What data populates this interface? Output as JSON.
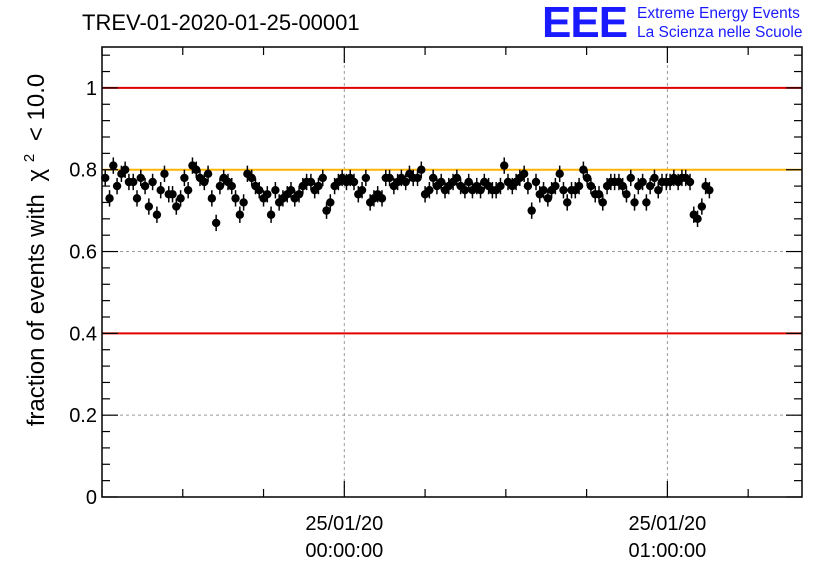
{
  "title": "TREV-01-2020-01-25-00001",
  "logo": {
    "letters": "EEE",
    "line1": "Extreme Energy Events",
    "line2": "La Scienza nelle Scuole"
  },
  "colors": {
    "logo": "#1a1aff",
    "limit_lines": "#e00000",
    "reference_line": "#ffb400",
    "points": "#000000"
  },
  "chart_data": {
    "type": "scatter",
    "ylabel_prefix": "fraction of events with",
    "ylabel_symbol": "χ",
    "ylabel_exp": "2",
    "ylabel_suffix": "< 10.0",
    "xlabel": "",
    "ylim": [
      0,
      1.1
    ],
    "xlim_minutes": [
      -45,
      85
    ],
    "yticks": [
      "0",
      "0.2",
      "0.4",
      "0.6",
      "0.8",
      "1"
    ],
    "ytick_values": [
      0,
      0.2,
      0.4,
      0.6,
      0.8,
      1.0
    ],
    "xticks": [
      {
        "minutes": 0,
        "date": "25/01/20",
        "time": "00:00:00"
      },
      {
        "minutes": 60,
        "date": "25/01/20",
        "time": "01:00:00"
      }
    ],
    "grid": true,
    "hlines": [
      {
        "y": 1.0,
        "color": "#e00000"
      },
      {
        "y": 0.8,
        "color": "#ffb400"
      },
      {
        "y": 0.4,
        "color": "#e00000"
      }
    ],
    "error_bar": 0.02,
    "points": [
      {
        "t": -44.4,
        "y": 0.78
      },
      {
        "t": -43.6,
        "y": 0.73
      },
      {
        "t": -42.9,
        "y": 0.81
      },
      {
        "t": -42.2,
        "y": 0.76
      },
      {
        "t": -41.4,
        "y": 0.79
      },
      {
        "t": -40.7,
        "y": 0.8
      },
      {
        "t": -40.0,
        "y": 0.77
      },
      {
        "t": -39.2,
        "y": 0.77
      },
      {
        "t": -38.5,
        "y": 0.73
      },
      {
        "t": -37.8,
        "y": 0.78
      },
      {
        "t": -37.0,
        "y": 0.76
      },
      {
        "t": -36.3,
        "y": 0.71
      },
      {
        "t": -35.6,
        "y": 0.77
      },
      {
        "t": -34.8,
        "y": 0.69
      },
      {
        "t": -34.1,
        "y": 0.75
      },
      {
        "t": -33.4,
        "y": 0.79
      },
      {
        "t": -32.6,
        "y": 0.74
      },
      {
        "t": -31.9,
        "y": 0.74
      },
      {
        "t": -31.2,
        "y": 0.71
      },
      {
        "t": -30.4,
        "y": 0.73
      },
      {
        "t": -29.7,
        "y": 0.78
      },
      {
        "t": -29.0,
        "y": 0.75
      },
      {
        "t": -28.2,
        "y": 0.81
      },
      {
        "t": -27.5,
        "y": 0.8
      },
      {
        "t": -26.8,
        "y": 0.78
      },
      {
        "t": -26.0,
        "y": 0.77
      },
      {
        "t": -25.3,
        "y": 0.79
      },
      {
        "t": -24.6,
        "y": 0.73
      },
      {
        "t": -23.8,
        "y": 0.67
      },
      {
        "t": -23.1,
        "y": 0.76
      },
      {
        "t": -22.4,
        "y": 0.78
      },
      {
        "t": -21.6,
        "y": 0.77
      },
      {
        "t": -20.9,
        "y": 0.76
      },
      {
        "t": -20.2,
        "y": 0.73
      },
      {
        "t": -19.4,
        "y": 0.69
      },
      {
        "t": -18.7,
        "y": 0.72
      },
      {
        "t": -18.0,
        "y": 0.79
      },
      {
        "t": -17.2,
        "y": 0.78
      },
      {
        "t": -16.5,
        "y": 0.76
      },
      {
        "t": -15.8,
        "y": 0.75
      },
      {
        "t": -15.0,
        "y": 0.73
      },
      {
        "t": -14.3,
        "y": 0.74
      },
      {
        "t": -13.6,
        "y": 0.69
      },
      {
        "t": -12.8,
        "y": 0.75
      },
      {
        "t": -12.1,
        "y": 0.72
      },
      {
        "t": -11.4,
        "y": 0.73
      },
      {
        "t": -10.6,
        "y": 0.74
      },
      {
        "t": -9.9,
        "y": 0.75
      },
      {
        "t": -9.2,
        "y": 0.73
      },
      {
        "t": -8.4,
        "y": 0.74
      },
      {
        "t": -7.7,
        "y": 0.76
      },
      {
        "t": -7.0,
        "y": 0.77
      },
      {
        "t": -6.2,
        "y": 0.77
      },
      {
        "t": -5.5,
        "y": 0.75
      },
      {
        "t": -4.8,
        "y": 0.76
      },
      {
        "t": -4.0,
        "y": 0.78
      },
      {
        "t": -3.3,
        "y": 0.7
      },
      {
        "t": -2.6,
        "y": 0.72
      },
      {
        "t": -1.8,
        "y": 0.76
      },
      {
        "t": -1.1,
        "y": 0.77
      },
      {
        "t": -0.4,
        "y": 0.78
      },
      {
        "t": 0.4,
        "y": 0.77
      },
      {
        "t": 1.1,
        "y": 0.78
      },
      {
        "t": 1.8,
        "y": 0.77
      },
      {
        "t": 2.6,
        "y": 0.74
      },
      {
        "t": 3.3,
        "y": 0.75
      },
      {
        "t": 4.0,
        "y": 0.78
      },
      {
        "t": 4.8,
        "y": 0.72
      },
      {
        "t": 5.5,
        "y": 0.73
      },
      {
        "t": 6.2,
        "y": 0.74
      },
      {
        "t": 7.0,
        "y": 0.73
      },
      {
        "t": 7.7,
        "y": 0.78
      },
      {
        "t": 8.4,
        "y": 0.78
      },
      {
        "t": 9.2,
        "y": 0.76
      },
      {
        "t": 9.9,
        "y": 0.77
      },
      {
        "t": 10.6,
        "y": 0.78
      },
      {
        "t": 11.4,
        "y": 0.77
      },
      {
        "t": 12.1,
        "y": 0.79
      },
      {
        "t": 12.8,
        "y": 0.78
      },
      {
        "t": 13.6,
        "y": 0.78
      },
      {
        "t": 14.3,
        "y": 0.8
      },
      {
        "t": 15.0,
        "y": 0.74
      },
      {
        "t": 15.8,
        "y": 0.75
      },
      {
        "t": 16.5,
        "y": 0.78
      },
      {
        "t": 17.2,
        "y": 0.76
      },
      {
        "t": 18.0,
        "y": 0.77
      },
      {
        "t": 18.7,
        "y": 0.75
      },
      {
        "t": 19.4,
        "y": 0.76
      },
      {
        "t": 20.2,
        "y": 0.77
      },
      {
        "t": 20.9,
        "y": 0.78
      },
      {
        "t": 21.6,
        "y": 0.76
      },
      {
        "t": 22.4,
        "y": 0.75
      },
      {
        "t": 23.1,
        "y": 0.77
      },
      {
        "t": 23.8,
        "y": 0.75
      },
      {
        "t": 24.6,
        "y": 0.76
      },
      {
        "t": 25.3,
        "y": 0.75
      },
      {
        "t": 26.0,
        "y": 0.77
      },
      {
        "t": 26.8,
        "y": 0.76
      },
      {
        "t": 27.5,
        "y": 0.75
      },
      {
        "t": 28.2,
        "y": 0.75
      },
      {
        "t": 29.0,
        "y": 0.76
      },
      {
        "t": 29.7,
        "y": 0.81
      },
      {
        "t": 30.4,
        "y": 0.77
      },
      {
        "t": 31.2,
        "y": 0.76
      },
      {
        "t": 31.9,
        "y": 0.77
      },
      {
        "t": 32.6,
        "y": 0.78
      },
      {
        "t": 33.4,
        "y": 0.79
      },
      {
        "t": 34.1,
        "y": 0.76
      },
      {
        "t": 34.8,
        "y": 0.7
      },
      {
        "t": 35.6,
        "y": 0.77
      },
      {
        "t": 36.3,
        "y": 0.74
      },
      {
        "t": 37.0,
        "y": 0.75
      },
      {
        "t": 37.8,
        "y": 0.73
      },
      {
        "t": 38.5,
        "y": 0.75
      },
      {
        "t": 39.2,
        "y": 0.76
      },
      {
        "t": 40.0,
        "y": 0.79
      },
      {
        "t": 40.7,
        "y": 0.75
      },
      {
        "t": 41.4,
        "y": 0.72
      },
      {
        "t": 42.2,
        "y": 0.75
      },
      {
        "t": 42.9,
        "y": 0.75
      },
      {
        "t": 43.6,
        "y": 0.76
      },
      {
        "t": 44.4,
        "y": 0.8
      },
      {
        "t": 45.1,
        "y": 0.78
      },
      {
        "t": 45.8,
        "y": 0.76
      },
      {
        "t": 46.6,
        "y": 0.74
      },
      {
        "t": 47.3,
        "y": 0.74
      },
      {
        "t": 48.0,
        "y": 0.72
      },
      {
        "t": 48.8,
        "y": 0.76
      },
      {
        "t": 49.5,
        "y": 0.77
      },
      {
        "t": 50.2,
        "y": 0.77
      },
      {
        "t": 51.0,
        "y": 0.77
      },
      {
        "t": 51.7,
        "y": 0.76
      },
      {
        "t": 52.4,
        "y": 0.74
      },
      {
        "t": 53.2,
        "y": 0.78
      },
      {
        "t": 53.9,
        "y": 0.72
      },
      {
        "t": 54.6,
        "y": 0.76
      },
      {
        "t": 55.4,
        "y": 0.77
      },
      {
        "t": 56.1,
        "y": 0.72
      },
      {
        "t": 56.8,
        "y": 0.76
      },
      {
        "t": 57.6,
        "y": 0.78
      },
      {
        "t": 58.3,
        "y": 0.75
      },
      {
        "t": 59.0,
        "y": 0.77
      },
      {
        "t": 59.8,
        "y": 0.77
      },
      {
        "t": 60.5,
        "y": 0.77
      },
      {
        "t": 61.2,
        "y": 0.78
      },
      {
        "t": 62.0,
        "y": 0.77
      },
      {
        "t": 62.7,
        "y": 0.78
      },
      {
        "t": 63.4,
        "y": 0.78
      },
      {
        "t": 64.2,
        "y": 0.77
      },
      {
        "t": 64.9,
        "y": 0.69
      },
      {
        "t": 65.6,
        "y": 0.68
      },
      {
        "t": 66.4,
        "y": 0.71
      },
      {
        "t": 67.1,
        "y": 0.76
      },
      {
        "t": 67.8,
        "y": 0.75
      }
    ]
  }
}
